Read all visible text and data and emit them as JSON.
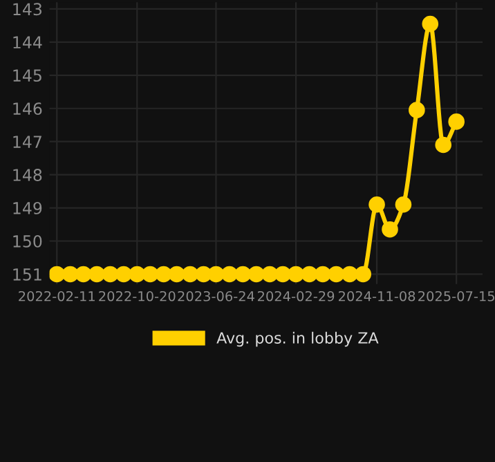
{
  "chart_data": {
    "type": "line",
    "x": [
      "2022-02-11",
      "2022-03-25",
      "2022-05-05",
      "2022-06-16",
      "2022-07-28",
      "2022-09-08",
      "2022-10-20",
      "2022-11-30",
      "2023-01-11",
      "2023-02-21",
      "2023-04-04",
      "2023-05-16",
      "2023-06-24",
      "2023-08-05",
      "2023-09-16",
      "2023-10-28",
      "2023-12-09",
      "2024-01-19",
      "2024-02-29",
      "2024-04-11",
      "2024-05-23",
      "2024-07-04",
      "2024-08-15",
      "2024-09-26",
      "2024-11-08",
      "2024-12-19",
      "2025-01-30",
      "2025-03-13",
      "2025-04-24",
      "2025-06-04",
      "2025-07-15"
    ],
    "series": [
      {
        "name": "Avg. pos. in lobby ZA",
        "color": "#ffd000",
        "values": [
          151,
          151,
          151,
          151,
          151,
          151,
          151,
          151,
          151,
          151,
          151,
          151,
          151,
          151,
          151,
          151,
          151,
          151,
          151,
          151,
          151,
          151,
          151,
          151,
          148.9,
          149.65,
          148.9,
          146.05,
          143.45,
          147.1,
          146.4
        ]
      }
    ],
    "xlim": [
      "2022-01-19",
      "2025-10-05"
    ],
    "xticks": [
      "2022-02-11",
      "2022-10-20",
      "2023-06-24",
      "2024-02-29",
      "2024-11-08",
      "2025-07-15"
    ],
    "ylim": [
      151.3,
      142.8
    ],
    "yticks": [
      143,
      144,
      145,
      146,
      147,
      148,
      149,
      150,
      151
    ],
    "grid": true,
    "legend": "bottom",
    "marker": "circle",
    "line_style": "solid"
  }
}
